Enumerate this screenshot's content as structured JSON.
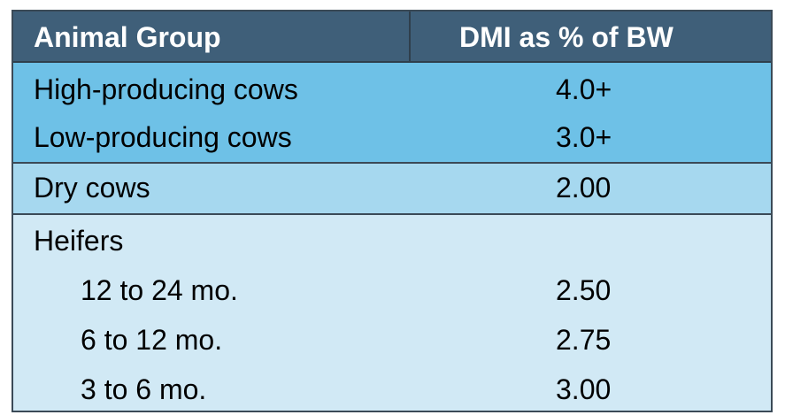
{
  "header": {
    "col1": "Animal Group",
    "col2": "DMI as % of BW"
  },
  "groups": {
    "lactating": [
      {
        "label": "High-producing cows",
        "value": "4.0+"
      },
      {
        "label": "Low-producing cows",
        "value": "3.0+"
      }
    ],
    "dry": {
      "label": "Dry cows",
      "value": "2.00"
    },
    "heifers": {
      "label": "Heifers",
      "rows": [
        {
          "label": "12 to 24 mo.",
          "value": "2.50"
        },
        {
          "label": "6 to 12 mo.",
          "value": "2.75"
        },
        {
          "label": "3 to 6 mo.",
          "value": "3.00"
        }
      ]
    }
  },
  "colors": {
    "header_bg": "#3f5f79",
    "lactating_bg": "#6ec1e7",
    "dry_bg": "#a6d8ef",
    "heifers_bg": "#d1e9f5"
  }
}
